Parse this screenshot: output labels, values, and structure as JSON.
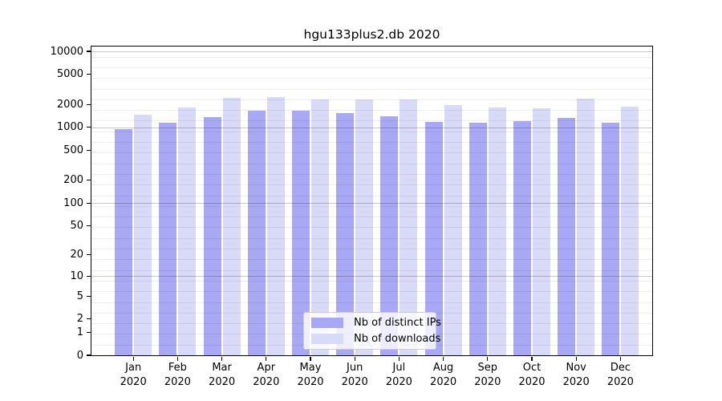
{
  "title": "hgu133plus2.db 2020",
  "chart_data": {
    "type": "bar",
    "title": "hgu133plus2.db 2020",
    "categories": [
      "Jan",
      "Feb",
      "Mar",
      "Apr",
      "May",
      "Jun",
      "Jul",
      "Aug",
      "Sep",
      "Oct",
      "Nov",
      "Dec"
    ],
    "x_year_label": "2020",
    "series": [
      {
        "name": "Nb of distinct IPs",
        "color": "#a8a8f4",
        "values": [
          950,
          1140,
          1360,
          1670,
          1640,
          1530,
          1400,
          1190,
          1140,
          1200,
          1340,
          1140
        ]
      },
      {
        "name": "Nb of downloads",
        "color": "#d9d9f8",
        "values": [
          1460,
          1820,
          2430,
          2520,
          2330,
          2350,
          2310,
          1960,
          1820,
          1790,
          2380,
          1850
        ]
      }
    ],
    "y_ticks": [
      10000,
      5000,
      2000,
      1000,
      500,
      200,
      100,
      50,
      20,
      10,
      5,
      2,
      1,
      0
    ],
    "y_scale": "log10(v+1)",
    "ylim": [
      0,
      10000
    ],
    "grid": true,
    "legend_position": "inside-bottom-center",
    "colors": {
      "axis": "#000000",
      "grid_minor": "rgba(0,0,0,0.07)",
      "grid_major": "rgba(0,0,0,0.22)",
      "background": "#ffffff"
    }
  }
}
